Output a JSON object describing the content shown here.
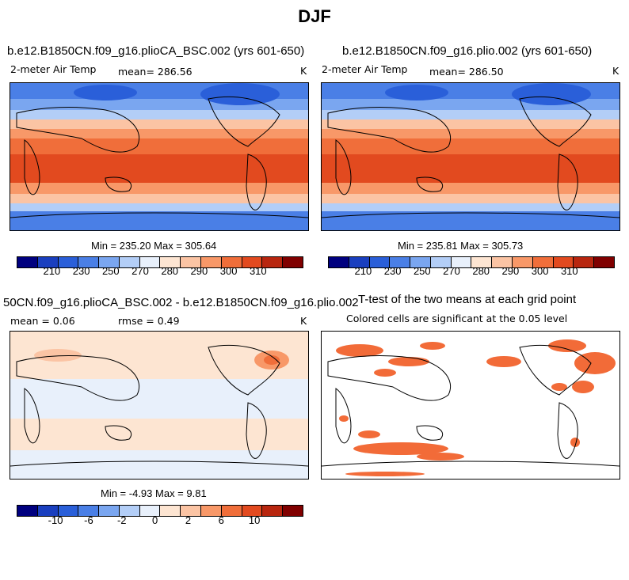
{
  "page": {
    "title": "DJF"
  },
  "chart_data": [
    {
      "type": "heatmap",
      "title": "b.e12.B1850CN.f09_g16.plioCA_BSC.002 (yrs 601-650)",
      "variable": "2-meter Air Temp",
      "mean_label": "mean= 286.56",
      "units": "K",
      "stats": "Min = 235.20 Max = 305.64",
      "colorbar": {
        "colors": [
          "#00007f",
          "#1a3fbf",
          "#2a5fd9",
          "#4a7fe6",
          "#7aa6f0",
          "#b3cef7",
          "#e8f0fb",
          "#fde5d2",
          "#fbc4a4",
          "#f89868",
          "#f06e3a",
          "#e24a1f",
          "#b8260f",
          "#800000"
        ],
        "tick_labels": [
          "210",
          "230",
          "250",
          "270",
          "280",
          "290",
          "300",
          "310"
        ]
      }
    },
    {
      "type": "heatmap",
      "title": "b.e12.B1850CN.f09_g16.plio.002 (yrs 601-650)",
      "variable": "2-meter Air Temp",
      "mean_label": "mean= 286.50",
      "units": "K",
      "stats": "Min = 235.81 Max = 305.73",
      "colorbar": {
        "colors": [
          "#00007f",
          "#1a3fbf",
          "#2a5fd9",
          "#4a7fe6",
          "#7aa6f0",
          "#b3cef7",
          "#e8f0fb",
          "#fde5d2",
          "#fbc4a4",
          "#f89868",
          "#f06e3a",
          "#e24a1f",
          "#b8260f",
          "#800000"
        ],
        "tick_labels": [
          "210",
          "230",
          "250",
          "270",
          "280",
          "290",
          "300",
          "310"
        ]
      }
    },
    {
      "type": "heatmap",
      "title": "50CN.f09_g16.plioCA_BSC.002 - b.e12.B1850CN.f09_g16.plio.002",
      "mean_label": "mean =    0.06",
      "rmse_label": "rmse =    0.49",
      "units": "K",
      "stats": "Min =  -4.93 Max =   9.81",
      "colorbar": {
        "colors": [
          "#00007f",
          "#1a3fbf",
          "#2a5fd9",
          "#4a7fe6",
          "#7aa6f0",
          "#b3cef7",
          "#e8f0fb",
          "#fde5d2",
          "#fbc4a4",
          "#f89868",
          "#f06e3a",
          "#e24a1f",
          "#b8260f",
          "#800000"
        ],
        "tick_labels": [
          "-10",
          "-6",
          "-2",
          "0",
          "2",
          "6",
          "10"
        ]
      }
    },
    {
      "type": "heatmap",
      "title": "T-test of the two means at each grid point",
      "subtitle": "Colored cells are significant at the 0.05 level",
      "significant_color": "#f26b38"
    }
  ]
}
